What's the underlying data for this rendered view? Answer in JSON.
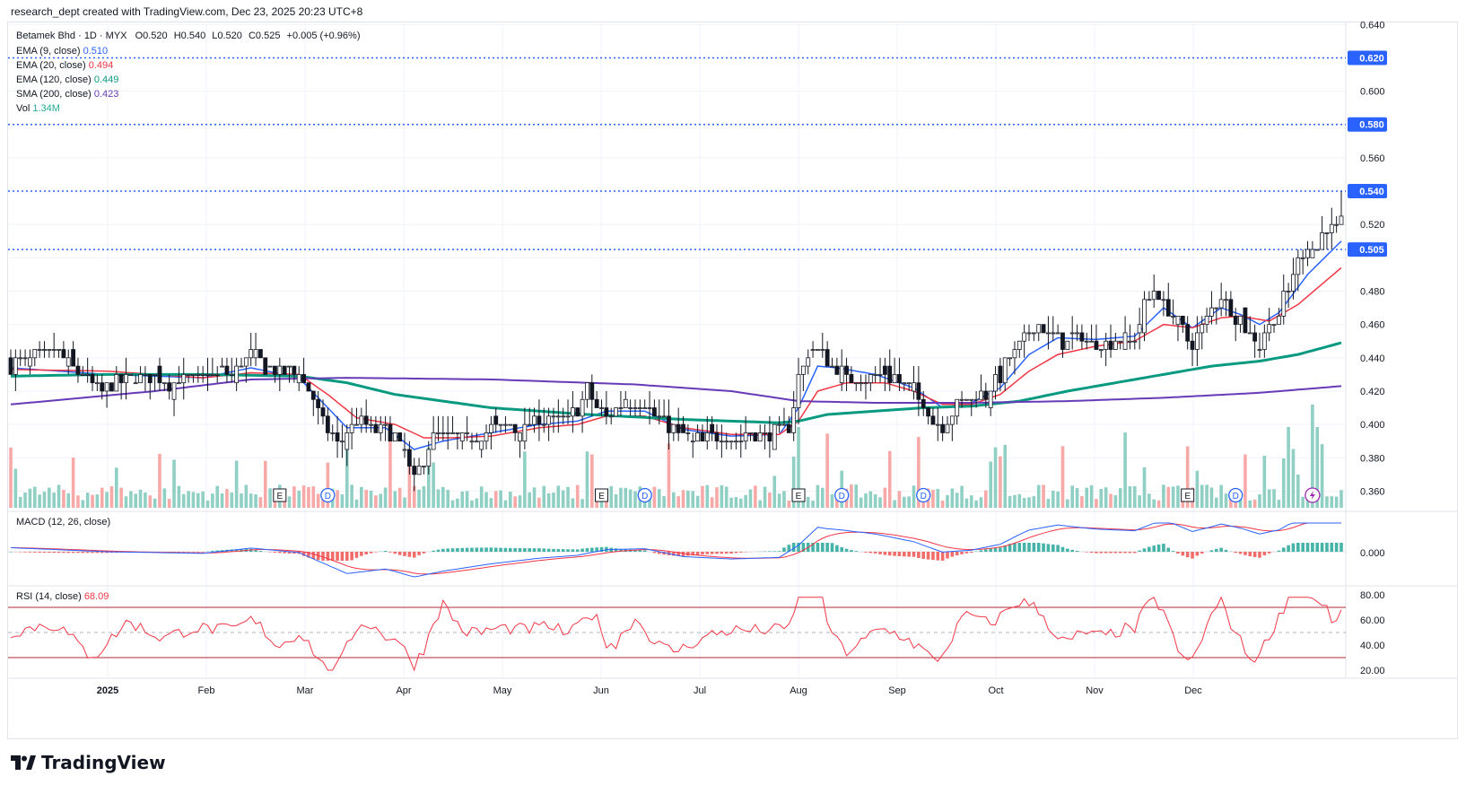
{
  "header": {
    "text": "research_dept created with TradingView.com, Dec 23, 2025 20:23 UTC+8"
  },
  "legend": {
    "symbol": "Betamek Bhd · 1D · MYX",
    "o": "O0.520",
    "h": "H0.540",
    "l": "L0.520",
    "c": "C0.525",
    "chg": "+0.005 (+0.96%)",
    "ema9_label": "EMA (9, close)",
    "ema9_value": "0.510",
    "ema20_label": "EMA (20, close)",
    "ema20_value": "0.494",
    "ema120_label": "EMA (120, close)",
    "ema120_value": "0.449",
    "sma200_label": "SMA (200, close)",
    "sma200_value": "0.423",
    "vol_label": "Vol",
    "vol_value": "1.34M",
    "macd_label": "MACD (12, 26, close)",
    "rsi_label": "RSI (14, close)",
    "rsi_value": "68.09"
  },
  "colors": {
    "up": "#ffffff",
    "down": "#131722",
    "ema9": "#2962ff",
    "ema20": "#f23645",
    "ema120": "#089981",
    "sma200": "#673ab7",
    "level": "#2962ff",
    "vol_up": "#8fcfc4",
    "vol_down": "#f7a9a7",
    "rsi": "#f23645",
    "macd": "#2962ff",
    "signal": "#f23645"
  },
  "chart_data": {
    "type": "candlestick",
    "symbol": "Betamek Bhd",
    "interval": "1D",
    "exchange": "MYX",
    "x_labels": [
      "2025",
      "Feb",
      "Mar",
      "Apr",
      "May",
      "Jun",
      "Jul",
      "Aug",
      "Sep",
      "Oct",
      "Nov",
      "Dec"
    ],
    "price_axis": {
      "ylim": [
        0.35,
        0.645
      ],
      "ticks": [
        "0.640",
        "0.600",
        "0.560",
        "0.520",
        "0.500",
        "0.480",
        "0.460",
        "0.440",
        "0.420",
        "0.400",
        "0.380",
        "0.360"
      ]
    },
    "horizontal_levels": [
      0.62,
      0.58,
      0.54,
      0.505
    ],
    "price_path": [
      [
        0,
        0.435
      ],
      [
        10,
        0.445
      ],
      [
        18,
        0.42
      ],
      [
        25,
        0.43
      ],
      [
        32,
        0.425
      ],
      [
        40,
        0.43
      ],
      [
        46,
        0.432
      ],
      [
        50,
        0.442
      ],
      [
        55,
        0.43
      ],
      [
        60,
        0.432
      ],
      [
        63,
        0.415
      ],
      [
        66,
        0.395
      ],
      [
        68,
        0.39
      ],
      [
        72,
        0.4
      ],
      [
        76,
        0.398
      ],
      [
        80,
        0.395
      ],
      [
        82,
        0.382
      ],
      [
        84,
        0.368
      ],
      [
        86,
        0.38
      ],
      [
        88,
        0.392
      ],
      [
        92,
        0.394
      ],
      [
        96,
        0.393
      ],
      [
        100,
        0.396
      ],
      [
        104,
        0.398
      ],
      [
        108,
        0.4
      ],
      [
        112,
        0.405
      ],
      [
        116,
        0.4
      ],
      [
        120,
        0.42
      ],
      [
        124,
        0.402
      ],
      [
        128,
        0.415
      ],
      [
        132,
        0.412
      ],
      [
        136,
        0.4
      ],
      [
        140,
        0.392
      ],
      [
        144,
        0.39
      ],
      [
        150,
        0.392
      ],
      [
        156,
        0.394
      ],
      [
        160,
        0.396
      ],
      [
        162,
        0.398
      ],
      [
        164,
        0.43
      ],
      [
        166,
        0.442
      ],
      [
        168,
        0.445
      ],
      [
        170,
        0.44
      ],
      [
        174,
        0.428
      ],
      [
        178,
        0.428
      ],
      [
        182,
        0.43
      ],
      [
        186,
        0.425
      ],
      [
        188,
        0.42
      ],
      [
        190,
        0.412
      ],
      [
        192,
        0.4
      ],
      [
        194,
        0.4
      ],
      [
        196,
        0.408
      ],
      [
        198,
        0.412
      ],
      [
        200,
        0.416
      ],
      [
        204,
        0.42
      ],
      [
        208,
        0.44
      ],
      [
        212,
        0.455
      ],
      [
        214,
        0.46
      ],
      [
        218,
        0.45
      ],
      [
        222,
        0.452
      ],
      [
        226,
        0.448
      ],
      [
        230,
        0.45
      ],
      [
        234,
        0.452
      ],
      [
        236,
        0.47
      ],
      [
        238,
        0.48
      ],
      [
        240,
        0.472
      ],
      [
        242,
        0.465
      ],
      [
        244,
        0.455
      ],
      [
        246,
        0.448
      ],
      [
        248,
        0.46
      ],
      [
        250,
        0.47
      ],
      [
        252,
        0.478
      ],
      [
        254,
        0.468
      ],
      [
        256,
        0.462
      ],
      [
        258,
        0.455
      ],
      [
        260,
        0.448
      ],
      [
        262,
        0.46
      ],
      [
        264,
        0.468
      ],
      [
        266,
        0.48
      ],
      [
        268,
        0.5
      ],
      [
        270,
        0.51
      ],
      [
        272,
        0.505
      ],
      [
        274,
        0.52
      ],
      [
        276,
        0.515
      ],
      [
        277,
        0.525
      ]
    ],
    "series": [
      {
        "name": "EMA (9, close)",
        "path": [
          [
            0,
            0.434
          ],
          [
            20,
            0.43
          ],
          [
            40,
            0.428
          ],
          [
            50,
            0.434
          ],
          [
            60,
            0.428
          ],
          [
            66,
            0.41
          ],
          [
            70,
            0.398
          ],
          [
            78,
            0.398
          ],
          [
            84,
            0.385
          ],
          [
            90,
            0.39
          ],
          [
            100,
            0.395
          ],
          [
            110,
            0.4
          ],
          [
            118,
            0.402
          ],
          [
            124,
            0.408
          ],
          [
            132,
            0.408
          ],
          [
            140,
            0.397
          ],
          [
            150,
            0.393
          ],
          [
            160,
            0.394
          ],
          [
            164,
            0.41
          ],
          [
            168,
            0.435
          ],
          [
            172,
            0.434
          ],
          [
            180,
            0.43
          ],
          [
            188,
            0.422
          ],
          [
            194,
            0.41
          ],
          [
            200,
            0.413
          ],
          [
            206,
            0.422
          ],
          [
            212,
            0.442
          ],
          [
            218,
            0.452
          ],
          [
            226,
            0.451
          ],
          [
            234,
            0.453
          ],
          [
            240,
            0.47
          ],
          [
            246,
            0.458
          ],
          [
            252,
            0.47
          ],
          [
            256,
            0.466
          ],
          [
            260,
            0.46
          ],
          [
            264,
            0.467
          ],
          [
            270,
            0.49
          ],
          [
            277,
            0.51
          ]
        ]
      },
      {
        "name": "EMA (20, close)",
        "path": [
          [
            0,
            0.433
          ],
          [
            20,
            0.432
          ],
          [
            40,
            0.428
          ],
          [
            50,
            0.431
          ],
          [
            60,
            0.43
          ],
          [
            66,
            0.418
          ],
          [
            72,
            0.404
          ],
          [
            80,
            0.4
          ],
          [
            86,
            0.392
          ],
          [
            92,
            0.392
          ],
          [
            100,
            0.393
          ],
          [
            110,
            0.398
          ],
          [
            118,
            0.4
          ],
          [
            124,
            0.405
          ],
          [
            132,
            0.405
          ],
          [
            140,
            0.398
          ],
          [
            150,
            0.394
          ],
          [
            160,
            0.394
          ],
          [
            164,
            0.402
          ],
          [
            168,
            0.42
          ],
          [
            174,
            0.425
          ],
          [
            182,
            0.425
          ],
          [
            188,
            0.42
          ],
          [
            194,
            0.412
          ],
          [
            200,
            0.412
          ],
          [
            206,
            0.418
          ],
          [
            212,
            0.432
          ],
          [
            218,
            0.442
          ],
          [
            226,
            0.447
          ],
          [
            234,
            0.45
          ],
          [
            240,
            0.46
          ],
          [
            246,
            0.458
          ],
          [
            252,
            0.464
          ],
          [
            256,
            0.465
          ],
          [
            262,
            0.462
          ],
          [
            268,
            0.472
          ],
          [
            277,
            0.494
          ]
        ]
      },
      {
        "name": "EMA (120, close)",
        "path": [
          [
            0,
            0.429
          ],
          [
            20,
            0.43
          ],
          [
            40,
            0.43
          ],
          [
            60,
            0.429
          ],
          [
            70,
            0.425
          ],
          [
            80,
            0.418
          ],
          [
            100,
            0.41
          ],
          [
            120,
            0.406
          ],
          [
            140,
            0.403
          ],
          [
            160,
            0.401
          ],
          [
            164,
            0.402
          ],
          [
            170,
            0.406
          ],
          [
            180,
            0.408
          ],
          [
            190,
            0.41
          ],
          [
            200,
            0.411
          ],
          [
            210,
            0.414
          ],
          [
            220,
            0.42
          ],
          [
            230,
            0.425
          ],
          [
            240,
            0.43
          ],
          [
            250,
            0.435
          ],
          [
            260,
            0.438
          ],
          [
            268,
            0.442
          ],
          [
            277,
            0.449
          ]
        ]
      },
      {
        "name": "SMA (200, close)",
        "path": [
          [
            0,
            0.412
          ],
          [
            30,
            0.42
          ],
          [
            50,
            0.427
          ],
          [
            70,
            0.428
          ],
          [
            100,
            0.427
          ],
          [
            130,
            0.424
          ],
          [
            150,
            0.42
          ],
          [
            164,
            0.414
          ],
          [
            180,
            0.413
          ],
          [
            200,
            0.413
          ],
          [
            220,
            0.414
          ],
          [
            240,
            0.416
          ],
          [
            260,
            0.419
          ],
          [
            277,
            0.423
          ]
        ]
      }
    ],
    "volume": {
      "label": "Vol",
      "last": "1.34M"
    },
    "macd": {
      "label": "MACD (12, 26, close)",
      "ticks": [
        "0.000"
      ]
    },
    "rsi": {
      "label": "RSI (14, close)",
      "last": 68.09,
      "ylim": [
        15,
        85
      ],
      "ticks": [
        "80.00",
        "60.00",
        "40.00",
        "20.00"
      ],
      "bands": [
        70,
        50,
        30
      ]
    },
    "event_markers": [
      {
        "type": "E",
        "x": 56
      },
      {
        "type": "D",
        "x": 66
      },
      {
        "type": "E",
        "x": 123
      },
      {
        "type": "D",
        "x": 132
      },
      {
        "type": "E",
        "x": 164
      },
      {
        "type": "D",
        "x": 173
      },
      {
        "type": "D",
        "x": 190
      },
      {
        "type": "E",
        "x": 245
      },
      {
        "type": "D",
        "x": 255
      },
      {
        "type": "flash",
        "x": 271
      }
    ]
  },
  "logo": {
    "text": "TradingView"
  }
}
